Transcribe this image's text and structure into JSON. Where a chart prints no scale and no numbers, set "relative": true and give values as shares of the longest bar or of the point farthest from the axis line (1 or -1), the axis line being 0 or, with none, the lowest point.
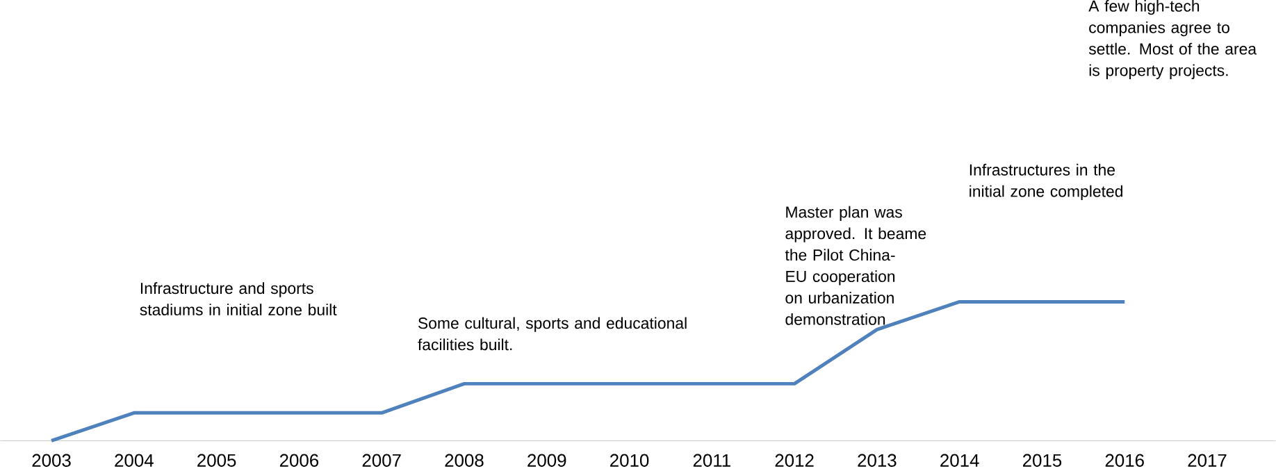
{
  "chart_data": {
    "type": "line",
    "relative": true,
    "color": "#4f81bd",
    "marker": "none",
    "line_style": "solid",
    "categories": [
      "2003",
      "2004",
      "2005",
      "2006",
      "2007",
      "2008",
      "2009",
      "2010",
      "2011",
      "2012",
      "2013",
      "2014",
      "2015",
      "2016",
      "2017"
    ],
    "values": [
      0,
      0.2,
      0.2,
      0.2,
      0.2,
      0.41,
      0.41,
      0.41,
      0.41,
      0.41,
      0.8,
      1,
      1,
      1,
      null
    ],
    "annotations": [
      "Infrastructure and sports stadiums in initial zone built",
      "Some cultural, sports and educational facilities built.",
      "Master plan was approved.  It beame the Pilot China-EU cooperation on urbanization demonstration",
      "Infrastructures in the initial zone completed",
      "A few high-tech companies  agree to settle. Most of the area  is property projects."
    ]
  }
}
